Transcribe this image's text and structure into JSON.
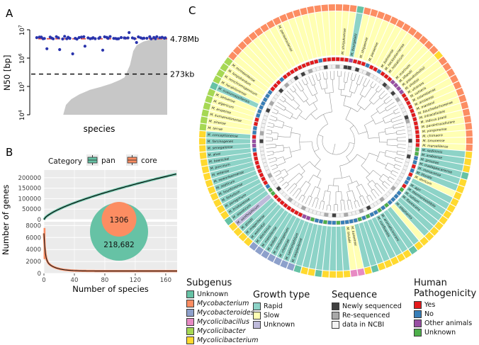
{
  "chart_data": [
    {
      "id": "A",
      "panel_label": "A",
      "type": "scatter",
      "ylabel": "N50 [bp]",
      "xlabel": "species",
      "yscale": "log",
      "ylim": [
        10000,
        10000000
      ],
      "ytick_labels": [
        "10^4",
        "10^5",
        "10^6",
        "10^7"
      ],
      "hlines": [
        {
          "text": "4.78Mb",
          "y": 4780000,
          "style": "dashed",
          "color": "#DE2A21"
        },
        {
          "text": "273kb",
          "y": 273000,
          "style": "dashed",
          "color": "#000000"
        }
      ],
      "series": [
        {
          "name": "assembly N50 points",
          "type": "points",
          "color": "#2A34AC",
          "center_value": 5200000,
          "n_points": 62
        },
        {
          "name": "genome size distribution",
          "type": "area",
          "color": "#C7C7C7"
        }
      ]
    },
    {
      "id": "B",
      "panel_label": "B",
      "type": "line",
      "legend_title": "Category",
      "series": [
        {
          "name": "pan",
          "color": "#66C2A5",
          "final_genes": 218682
        },
        {
          "name": "core",
          "color": "#FC8D62",
          "final_genes": 1306
        }
      ],
      "xlabel": "Number of species",
      "ylabel": "Number of genes",
      "xlim": [
        0,
        175
      ],
      "x_ticks": [
        0,
        40,
        80,
        120,
        160
      ],
      "top_y_ticks": [
        0,
        50000,
        100000,
        150000,
        200000
      ],
      "bottom_y_ticks": [
        0,
        2000,
        4000,
        6000,
        8000
      ],
      "venn": {
        "core_label": "1306",
        "pan_label": "218,682",
        "core_color": "#FC8D62",
        "pan_color": "#66C2A5"
      }
    },
    {
      "id": "C",
      "panel_label": "C",
      "type": "circular-dendrogram",
      "rings_outer_to_inner": [
        "Subgenus",
        "Species label on Growth-type background",
        "Human Pathogenicity",
        "Sequence",
        "Phylogenetic tree"
      ],
      "legends": [
        {
          "key": "subgenus",
          "title_lines": [
            "Subgenus"
          ],
          "items": [
            {
              "code": "unk",
              "label": "Unknown",
              "color": "#66C2A5",
              "italic": false
            },
            {
              "code": "myco",
              "label": "Mycobacterium",
              "color": "#FC8D62",
              "italic": true
            },
            {
              "code": "mycoides",
              "label": "Mycobacteroides",
              "color": "#8DA0CB",
              "italic": true
            },
            {
              "code": "bacillus",
              "label": "Mycolicibacillus",
              "color": "#E78AC3",
              "italic": true
            },
            {
              "code": "bacter",
              "label": "Mycolicibacter",
              "color": "#A6D854",
              "italic": true
            },
            {
              "code": "bacterium",
              "label": "Mycolicibacterium",
              "color": "#FFD92F",
              "italic": true
            }
          ]
        },
        {
          "key": "growth",
          "title_lines": [
            "Growth type"
          ],
          "items": [
            {
              "code": "rapid",
              "label": "Rapid",
              "color": "#8DD3C7",
              "italic": false
            },
            {
              "code": "slow",
              "label": "Slow",
              "color": "#FFFFB3",
              "italic": false
            },
            {
              "code": "unknown",
              "label": "Unknown",
              "color": "#BEBADA",
              "italic": false
            }
          ]
        },
        {
          "key": "sequence",
          "title_lines": [
            "Sequence"
          ],
          "items": [
            {
              "code": "new",
              "label": "Newly sequenced",
              "color": "#404040",
              "italic": false
            },
            {
              "code": "re",
              "label": "Re-sequenced",
              "color": "#A8A8A8",
              "italic": false
            },
            {
              "code": "ncbi",
              "label": "data in NCBI",
              "color": "#F2F2F2",
              "italic": false
            }
          ]
        },
        {
          "key": "pathogenicity",
          "title_lines": [
            "Human",
            "Pathogenicity"
          ],
          "items": [
            {
              "code": "yes",
              "label": "Yes",
              "color": "#E41A1C",
              "italic": false
            },
            {
              "code": "no",
              "label": "No",
              "color": "#377EB8",
              "italic": false
            },
            {
              "code": "other",
              "label": "Other animals",
              "color": "#984EA3",
              "italic": false
            },
            {
              "code": "unknown",
              "label": "Unknown",
              "color": "#4DAF4A",
              "italic": false
            }
          ]
        }
      ],
      "leaf_fields": [
        "name",
        "growth_type",
        "subgenus",
        "human_pathogenicity",
        "sequence"
      ],
      "leaves": [
        [
          "",
          "slow",
          "myco",
          "yes",
          "re"
        ],
        [
          "M. shinjukuense",
          "slow",
          "myco",
          "yes",
          "ncbi"
        ],
        [
          "",
          "slow",
          "myco",
          "yes",
          "new"
        ],
        [
          "M. bourgelatii",
          "rapid",
          "unk",
          "other",
          "new"
        ],
        [
          "",
          "slow",
          "myco",
          "yes",
          "ncbi"
        ],
        [
          "M. shigaense",
          "slow",
          "myco",
          "yes",
          "new"
        ],
        [
          "",
          "slow",
          "myco",
          "yes",
          "ncbi"
        ],
        [
          "M. paraense",
          "slow",
          "myco",
          "no",
          "ncbi"
        ],
        [
          "",
          "slow",
          "myco",
          "yes",
          "re"
        ],
        [
          "",
          "slow",
          "myco",
          "yes",
          "ncbi"
        ],
        [
          "M. botniense",
          "slow",
          "myco",
          "no",
          "ncbi"
        ],
        [
          "M. heckeshornense",
          "slow",
          "myco",
          "yes",
          "ncbi"
        ],
        [
          "M. holsaticum",
          "slow",
          "myco",
          "yes",
          "ncbi"
        ],
        [
          "",
          "slow",
          "myco",
          "yes",
          "new"
        ],
        [
          "M. marinum",
          "slow",
          "myco",
          "other",
          "re"
        ],
        [
          "M. liflandii",
          "slow",
          "myco",
          "other",
          "ncbi"
        ],
        [
          "M. pseudoshottsii",
          "slow",
          "bacterium",
          "other",
          "new"
        ],
        [
          "M. shottsii",
          "slow",
          "myco",
          "other",
          "ncbi"
        ],
        [
          "M. ulcerans",
          "slow",
          "myco",
          "yes",
          "re"
        ],
        [
          "M. vulneris",
          "slow",
          "myco",
          "yes",
          "ncbi"
        ],
        [
          "M. colombiense",
          "slow",
          "myco",
          "yes",
          "ncbi"
        ],
        [
          "M. arosiense",
          "slow",
          "myco",
          "yes",
          "ncbi"
        ],
        [
          "M. mantenii",
          "slow",
          "myco",
          "yes",
          "ncbi"
        ],
        [
          "M. bouchedurhonense",
          "slow",
          "myco",
          "yes",
          "new"
        ],
        [
          "M. intracellulare",
          "slow",
          "myco",
          "yes",
          "re"
        ],
        [
          "M. indicus pranii",
          "slow",
          "myco",
          "yes",
          "ncbi"
        ],
        [
          "M. paraintracellulare",
          "slow",
          "myco",
          "yes",
          "ncbi"
        ],
        [
          "M. yongonense",
          "slow",
          "myco",
          "yes",
          "ncbi"
        ],
        [
          "M. chimaera",
          "slow",
          "myco",
          "yes",
          "ncbi"
        ],
        [
          "M. timonense",
          "slow",
          "myco",
          "yes",
          "new"
        ],
        [
          "M. marseillense",
          "slow",
          "myco",
          "yes",
          "ncbi"
        ],
        [
          "M. sediminis",
          "rapid",
          "bacterium",
          "unknown",
          "ncbi"
        ],
        [
          "M. arabiense",
          "rapid",
          "bacterium",
          "unknown",
          "ncbi"
        ],
        [
          "M. grossiae",
          "rapid",
          "bacterium",
          "no",
          "new"
        ],
        [
          "M. madagascariense",
          "rapid",
          "unk",
          "no",
          "ncbi"
        ],
        [
          "M. monacense",
          "rapid",
          "bacterium",
          "yes",
          "ncbi"
        ],
        [
          "M. litorale",
          "rapid",
          "bacterium",
          "no",
          "ncbi"
        ],
        [
          "M. doricum",
          "slow",
          "bacterium",
          "yes",
          "ncbi"
        ],
        [
          "",
          "rapid",
          "bacterium",
          "no",
          "ncbi"
        ],
        [
          "M. agri",
          "rapid",
          "bacterium",
          "no",
          "ncbi"
        ],
        [
          "M. thermoresistibile",
          "rapid",
          "bacterium",
          "yes",
          "ncbi"
        ],
        [
          "M. rutilum",
          "rapid",
          "bacterium",
          "unknown",
          "ncbi"
        ],
        [
          "M. flavescens",
          "rapid",
          "bacterium",
          "no",
          "re"
        ],
        [
          "",
          "rapid",
          "bacterium",
          "no",
          "ncbi"
        ],
        [
          "M. elephantis",
          "rapid",
          "bacterium",
          "no",
          "ncbi"
        ],
        [
          "",
          "slow",
          "bacterium",
          "no",
          "ncbi"
        ],
        [
          "",
          "rapid",
          "bacterium",
          "unknown",
          "re"
        ],
        [
          "",
          "rapid",
          "unk",
          "no",
          "ncbi"
        ],
        [
          "M. aromaticivorans",
          "rapid",
          "bacterium",
          "unknown",
          "ncbi"
        ],
        [
          "M. confluentis",
          "rapid",
          "bacterium",
          "no",
          "ncbi"
        ],
        [
          "",
          "rapid",
          "bacterium",
          "no",
          "new"
        ],
        [
          "",
          "rapid",
          "bacterium",
          "unknown",
          "ncbi"
        ],
        [
          "",
          "rapid",
          "bacterium",
          "no",
          "re"
        ],
        [
          "",
          "rapid",
          "unk",
          "unknown",
          "ncbi"
        ],
        [
          "",
          "rapid",
          "bacterium",
          "no",
          "ncbi"
        ],
        [
          "M. koreense",
          "slow",
          "bacillus",
          "no",
          "ncbi"
        ],
        [
          "M. triviale",
          "slow",
          "bacillus",
          "no",
          "re"
        ],
        [
          "",
          "rapid",
          "bacterium",
          "no",
          "ncbi"
        ],
        [
          "",
          "rapid",
          "bacterium",
          "unknown",
          "ncbi"
        ],
        [
          "",
          "rapid",
          "bacterium",
          "no",
          "new"
        ],
        [
          "",
          "rapid",
          "bacterium",
          "no",
          "ncbi"
        ],
        [
          "",
          "rapid",
          "unk",
          "unknown",
          "re"
        ],
        [
          "",
          "rapid",
          "bacterium",
          "no",
          "ncbi"
        ],
        [
          "",
          "rapid",
          "bacterium",
          "no",
          "ncbi"
        ],
        [
          "",
          "rapid",
          "unk",
          "unknown",
          "ncbi"
        ],
        [
          "M. saopaulense",
          "rapid",
          "mycoides",
          "other",
          "ncbi"
        ],
        [
          "M. salmoniphilum",
          "rapid",
          "mycoides",
          "other",
          "ncbi"
        ],
        [
          "M. chelonae",
          "rapid",
          "mycoides",
          "yes",
          "re"
        ],
        [
          "M. immunogenum",
          "rapid",
          "mycoides",
          "yes",
          "ncbi"
        ],
        [
          "M. bolletii",
          "rapid",
          "mycoides",
          "yes",
          "ncbi"
        ],
        [
          "M. massiliense",
          "rapid",
          "mycoides",
          "yes",
          "ncbi"
        ],
        [
          "M. abscessus",
          "rapid",
          "mycoides",
          "yes",
          "re"
        ],
        [
          "M. wolinskyi",
          "rapid",
          "bacterium",
          "yes",
          "ncbi"
        ],
        [
          "M. mageritense",
          "rapid",
          "bacterium",
          "yes",
          "ncbi"
        ],
        [
          "M. goodii",
          "rapid",
          "bacterium",
          "yes",
          "ncbi"
        ],
        [
          "M. xanthophicum",
          "unknown",
          "bacterium",
          "unknown",
          "new"
        ],
        [
          "M. aquaticum",
          "rapid",
          "unk",
          "unknown",
          "ncbi"
        ],
        [
          "M. brisbanense",
          "rapid",
          "bacterium",
          "no",
          "ncbi"
        ],
        [
          "M. peregrinum",
          "rapid",
          "bacterium",
          "yes",
          "ncbi"
        ],
        [
          "M. fortuitum",
          "rapid",
          "bacterium",
          "yes",
          "re"
        ],
        [
          "M. houstonense",
          "rapid",
          "bacterium",
          "yes",
          "ncbi"
        ],
        [
          "M. septicum",
          "rapid",
          "bacterium",
          "yes",
          "ncbi"
        ],
        [
          "M. neworleansense",
          "rapid",
          "bacterium",
          "yes",
          "ncbi"
        ],
        [
          "M. setense",
          "rapid",
          "bacterium",
          "yes",
          "ncbi"
        ],
        [
          "M. porcinum",
          "rapid",
          "bacterium",
          "yes",
          "ncbi"
        ],
        [
          "M. boenickei",
          "rapid",
          "bacterium",
          "yes",
          "ncbi"
        ],
        [
          "M. alvei",
          "rapid",
          "bacterium",
          "no",
          "ncbi"
        ],
        [
          "M. senegalense",
          "rapid",
          "bacterium",
          "other",
          "ncbi"
        ],
        [
          "M. farcinogenes",
          "rapid",
          "bacterium",
          "other",
          "new"
        ],
        [
          "M. conceptionense",
          "rapid",
          "bacterium",
          "yes",
          "ncbi"
        ],
        [
          "M. terrae",
          "slow",
          "bacter",
          "no",
          "re"
        ],
        [
          "M. sinense",
          "slow",
          "bacter",
          "no",
          "ncbi"
        ],
        [
          "M. kumamotonense",
          "slow",
          "bacter",
          "yes",
          "ncbi"
        ],
        [
          "M. arupense",
          "slow",
          "bacter",
          "yes",
          "ncbi"
        ],
        [
          "M. algericum",
          "slow",
          "bacter",
          "no",
          "ncbi"
        ],
        [
          "M. senuense",
          "slow",
          "bacter",
          "no",
          "ncbi"
        ],
        [
          "M. icosiumassiliensis",
          "rapid",
          "unk",
          "no",
          "new"
        ],
        [
          "M. heraklionense",
          "slow",
          "bacter",
          "no",
          "ncbi"
        ],
        [
          "M. nonchromogenicum",
          "slow",
          "bacter",
          "no",
          "re"
        ],
        [
          "M. longobardum",
          "slow",
          "bacter",
          "no",
          "ncbi"
        ],
        [
          "M. minnesotense",
          "slow",
          "bacter",
          "no",
          "ncbi"
        ],
        [
          "",
          "slow",
          "myco",
          "yes",
          "ncbi"
        ],
        [
          "",
          "slow",
          "myco",
          "yes",
          "new"
        ],
        [
          "",
          "slow",
          "myco",
          "yes",
          "ncbi"
        ],
        [
          "",
          "slow",
          "myco",
          "no",
          "re"
        ],
        [
          "",
          "slow",
          "myco",
          "yes",
          "ncbi"
        ],
        [
          "",
          "slow",
          "myco",
          "yes",
          "ncbi"
        ],
        [
          "",
          "slow",
          "myco",
          "yes",
          "new"
        ],
        [
          "",
          "slow",
          "myco",
          "yes",
          "ncbi"
        ],
        [
          "M. paraseoulense",
          "slow",
          "myco",
          "yes",
          "new"
        ],
        [
          "",
          "slow",
          "myco",
          "yes",
          "ncbi"
        ],
        [
          "",
          "slow",
          "myco",
          "yes",
          "re"
        ],
        [
          "",
          "slow",
          "myco",
          "yes",
          "ncbi"
        ],
        [
          "",
          "slow",
          "myco",
          "yes",
          "ncbi"
        ],
        [
          "",
          "slow",
          "myco",
          "no",
          "ncbi"
        ],
        [
          "",
          "slow",
          "myco",
          "yes",
          "new"
        ],
        [
          "",
          "slow",
          "myco",
          "yes",
          "ncbi"
        ],
        [
          "",
          "slow",
          "myco",
          "yes",
          "ncbi"
        ]
      ]
    }
  ]
}
